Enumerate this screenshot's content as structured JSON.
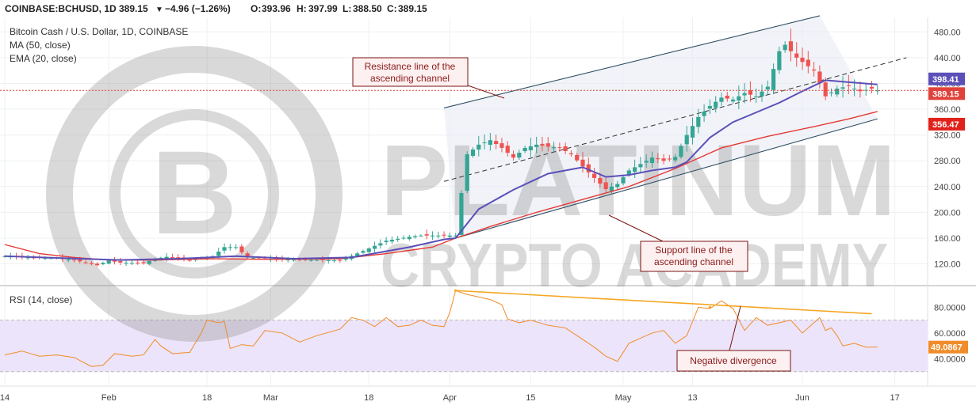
{
  "header": {
    "symbol": "COINBASE:BCHUSD, 1D",
    "last": "389.15",
    "change": "−4.96 (−1.26%)",
    "ohlc": {
      "O": "393.96",
      "H": "397.99",
      "L": "388.50",
      "C": "389.15"
    }
  },
  "legend": {
    "title": "Bitcoin Cash / U.S. Dollar, 1D, COINBASE",
    "ma": "MA (50, close)",
    "ema": "EMA (20, close)"
  },
  "rsi_legend": "RSI (14, close)",
  "annotations": {
    "resistance": [
      "Resistance line of the",
      "ascending channel"
    ],
    "support": [
      "Support line of the",
      "ascending channel"
    ],
    "divergence": "Negative divergence"
  },
  "watermark": {
    "line1": "PLATINUM",
    "line2": "CRYPTO ACADEMY"
  },
  "price_badges": [
    {
      "label": "398.41",
      "color": "#5b4fb8"
    },
    {
      "label": "389.15",
      "color": "#e0423a"
    },
    {
      "label": "356.47",
      "color": "#e0221a"
    }
  ],
  "rsi_badge": {
    "label": "49.0867",
    "color": "#f08c2a"
  },
  "colors": {
    "up": "#34a594",
    "down": "#ef5350",
    "ma": "#e53935",
    "ema": "#5b4fb8",
    "rsi": "#f08c2a",
    "divergence": "#f5a623",
    "channel": "#2f4f64"
  },
  "chart_data": [
    {
      "type": "candlestick",
      "title": "Bitcoin Cash / U.S. Dollar, 1D, COINBASE",
      "ylim": [
        90,
        500
      ],
      "y_ticks": [
        120,
        160,
        200,
        240,
        280,
        320,
        360,
        400,
        440,
        480
      ],
      "y_tick_labels": [
        "120.00",
        "160.00",
        "200.00",
        "240.00",
        "280.00",
        "320.00",
        "360.00",
        "400.00",
        "440.00",
        "480.00"
      ],
      "x_ticks": [
        {
          "day": 0,
          "label": "14"
        },
        {
          "day": 18,
          "label": "Feb"
        },
        {
          "day": 35,
          "label": "18"
        },
        {
          "day": 46,
          "label": "Mar"
        },
        {
          "day": 63,
          "label": "18"
        },
        {
          "day": 77,
          "label": "Apr"
        },
        {
          "day": 91,
          "label": "15"
        },
        {
          "day": 107,
          "label": "May"
        },
        {
          "day": 119,
          "label": "13"
        },
        {
          "day": 138,
          "label": "Jun"
        },
        {
          "day": 154,
          "label": "17"
        }
      ],
      "price_series": [
        [
          0,
          132
        ],
        [
          4,
          130
        ],
        [
          8,
          129
        ],
        [
          12,
          126
        ],
        [
          14,
          122
        ],
        [
          16,
          118
        ],
        [
          18,
          125
        ],
        [
          20,
          122
        ],
        [
          24,
          121
        ],
        [
          26,
          128
        ],
        [
          28,
          131
        ],
        [
          32,
          126
        ],
        [
          36,
          132
        ],
        [
          38,
          146
        ],
        [
          40,
          146
        ],
        [
          42,
          130
        ],
        [
          44,
          129
        ],
        [
          48,
          127
        ],
        [
          52,
          126
        ],
        [
          56,
          126
        ],
        [
          58,
          125
        ],
        [
          62,
          140
        ],
        [
          66,
          156
        ],
        [
          70,
          162
        ],
        [
          72,
          164
        ],
        [
          75,
          164
        ],
        [
          78,
          164
        ],
        [
          79,
          230
        ],
        [
          80,
          290
        ],
        [
          82,
          305
        ],
        [
          84,
          312
        ],
        [
          86,
          300
        ],
        [
          88,
          285
        ],
        [
          90,
          300
        ],
        [
          92,
          305
        ],
        [
          94,
          302
        ],
        [
          96,
          300
        ],
        [
          98,
          290
        ],
        [
          101,
          262
        ],
        [
          104,
          236
        ],
        [
          106,
          244
        ],
        [
          108,
          265
        ],
        [
          110,
          275
        ],
        [
          112,
          285
        ],
        [
          114,
          280
        ],
        [
          116,
          286
        ],
        [
          118,
          320
        ],
        [
          120,
          348
        ],
        [
          122,
          365
        ],
        [
          124,
          378
        ],
        [
          126,
          375
        ],
        [
          128,
          385
        ],
        [
          130,
          380
        ],
        [
          132,
          395
        ],
        [
          134,
          450
        ],
        [
          135,
          460
        ],
        [
          137,
          440
        ],
        [
          140,
          420
        ],
        [
          142,
          380
        ],
        [
          144,
          392
        ],
        [
          146,
          396
        ],
        [
          148,
          388
        ],
        [
          150,
          392
        ],
        [
          151,
          389.15
        ]
      ],
      "ma50_series": [
        [
          0,
          150
        ],
        [
          6,
          136
        ],
        [
          12,
          130
        ],
        [
          18,
          126
        ],
        [
          26,
          126
        ],
        [
          36,
          128
        ],
        [
          46,
          127
        ],
        [
          58,
          128
        ],
        [
          66,
          136
        ],
        [
          74,
          146
        ],
        [
          78,
          160
        ],
        [
          84,
          178
        ],
        [
          92,
          200
        ],
        [
          100,
          220
        ],
        [
          108,
          240
        ],
        [
          116,
          268
        ],
        [
          124,
          300
        ],
        [
          132,
          318
        ],
        [
          140,
          333
        ],
        [
          146,
          345
        ],
        [
          151,
          356.47
        ]
      ],
      "ema20_series": [
        [
          0,
          132
        ],
        [
          10,
          129
        ],
        [
          20,
          126
        ],
        [
          30,
          128
        ],
        [
          40,
          132
        ],
        [
          50,
          128
        ],
        [
          60,
          130
        ],
        [
          70,
          146
        ],
        [
          76,
          158
        ],
        [
          78,
          160
        ],
        [
          82,
          205
        ],
        [
          88,
          235
        ],
        [
          94,
          260
        ],
        [
          100,
          270
        ],
        [
          104,
          255
        ],
        [
          108,
          258
        ],
        [
          112,
          265
        ],
        [
          116,
          270
        ],
        [
          118,
          278
        ],
        [
          122,
          316
        ],
        [
          126,
          340
        ],
        [
          130,
          355
        ],
        [
          134,
          370
        ],
        [
          138,
          388
        ],
        [
          142,
          405
        ],
        [
          146,
          402
        ],
        [
          151,
          398.41
        ]
      ],
      "channel": {
        "resistance": [
          [
            76,
            362
          ],
          [
            141,
            505
          ]
        ],
        "support": [
          [
            78,
            160
          ],
          [
            151,
            345
          ]
        ],
        "midline": [
          [
            76,
            248
          ],
          [
            156,
            440
          ]
        ]
      },
      "last_price": 389.15
    },
    {
      "type": "line",
      "title": "RSI (14, close)",
      "ylim": [
        20,
        95
      ],
      "y_ticks": [
        40,
        60,
        80
      ],
      "y_tick_labels": [
        "40.0000",
        "60.0000",
        "80.0000"
      ],
      "band": [
        30,
        70
      ],
      "series": [
        {
          "values": [
            [
              0,
              43
            ],
            [
              3,
              46
            ],
            [
              6,
              42
            ],
            [
              9,
              43
            ],
            [
              12,
              41
            ],
            [
              15,
              34
            ],
            [
              17,
              35
            ],
            [
              19,
              44
            ],
            [
              22,
              42
            ],
            [
              24,
              43
            ],
            [
              26,
              55
            ],
            [
              27,
              50
            ],
            [
              29,
              44
            ],
            [
              32,
              45
            ],
            [
              34,
              60
            ],
            [
              35,
              70
            ],
            [
              37,
              68
            ],
            [
              38,
              69
            ],
            [
              39,
              48
            ],
            [
              41,
              51
            ],
            [
              43,
              50
            ],
            [
              45,
              62
            ],
            [
              48,
              60
            ],
            [
              51,
              53
            ],
            [
              54,
              58
            ],
            [
              58,
              63
            ],
            [
              60,
              72
            ],
            [
              62,
              70
            ],
            [
              64,
              65
            ],
            [
              66,
              72
            ],
            [
              68,
              65
            ],
            [
              70,
              66
            ],
            [
              72,
              70
            ],
            [
              74,
              66
            ],
            [
              76,
              65
            ],
            [
              77,
              76
            ],
            [
              78,
              93
            ],
            [
              80,
              90
            ],
            [
              82,
              88
            ],
            [
              84,
              86
            ],
            [
              86,
              82
            ],
            [
              87,
              71
            ],
            [
              89,
              68
            ],
            [
              91,
              70
            ],
            [
              94,
              66
            ],
            [
              97,
              64
            ],
            [
              100,
              55
            ],
            [
              102,
              49
            ],
            [
              104,
              42
            ],
            [
              106,
              38
            ],
            [
              108,
              52
            ],
            [
              110,
              56
            ],
            [
              112,
              60
            ],
            [
              114,
              62
            ],
            [
              116,
              52
            ],
            [
              118,
              58
            ],
            [
              120,
              80
            ],
            [
              122,
              79
            ],
            [
              124,
              85
            ],
            [
              126,
              79
            ],
            [
              128,
              62
            ],
            [
              130,
              72
            ],
            [
              132,
              66
            ],
            [
              134,
              68
            ],
            [
              136,
              70
            ],
            [
              138,
              60
            ],
            [
              140,
              68
            ],
            [
              141,
              72
            ],
            [
              142,
              62
            ],
            [
              143,
              64
            ],
            [
              144,
              58
            ],
            [
              145,
              50
            ],
            [
              147,
              52
            ],
            [
              149,
              49
            ],
            [
              151,
              49.0867
            ]
          ]
        }
      ],
      "divergence_line": [
        [
          78,
          93
        ],
        [
          150,
          75
        ]
      ],
      "divergence_points": [
        [
          78,
          93
        ],
        [
          122,
          80
        ]
      ],
      "last_value": 49.0867
    }
  ]
}
